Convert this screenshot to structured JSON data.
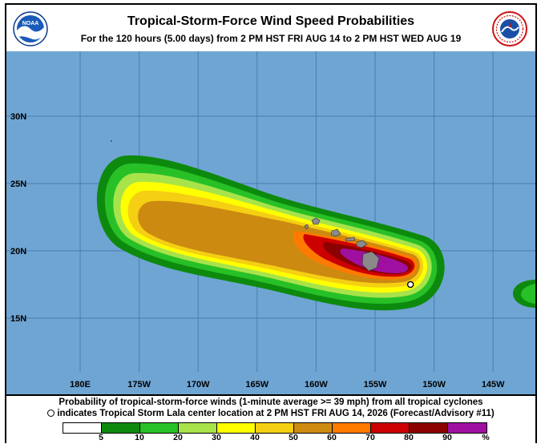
{
  "header": {
    "title": "Tropical-Storm-Force Wind Speed Probabilities",
    "subtitle": "For the 120 hours (5.00 days) from 2 PM HST FRI AUG 14 to 2 PM HST WED AUG 19",
    "left_logo": "NOAA",
    "right_logo": "NATIONAL WEATHER SERVICE"
  },
  "map": {
    "ocean_color": "#6fa5d3",
    "grid_color": "#4a7cb0",
    "land_color": "#8a8a8a",
    "lat_labels": [
      "30N",
      "25N",
      "20N",
      "15N"
    ],
    "lon_labels": [
      "180E",
      "175W",
      "170W",
      "165W",
      "160W",
      "155W",
      "150W",
      "145W"
    ],
    "storm_name": "Tropical Storm Lala",
    "storm_center": {
      "lon": -152,
      "lat": 17.5
    }
  },
  "footer": {
    "note1": "Probability of tropical-storm-force winds (1-minute average >= 39 mph) from all tropical cyclones",
    "note2": "indicates Tropical Storm Lala center location at 2 PM HST FRI AUG 14, 2026 (Forecast/Advisory #11)"
  },
  "legend": {
    "colors": [
      "#ffffff",
      "#0d8a0d",
      "#27c027",
      "#a8e34a",
      "#ffff00",
      "#f5cf13",
      "#cc8a10",
      "#ff7a00",
      "#cc0000",
      "#8b0000",
      "#a010a0"
    ],
    "labels": [
      "5",
      "10",
      "20",
      "30",
      "40",
      "50",
      "60",
      "70",
      "80",
      "90",
      "%"
    ]
  }
}
